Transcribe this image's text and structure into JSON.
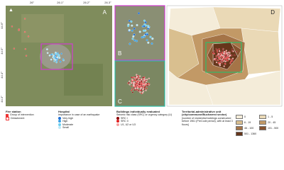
{
  "panels": {
    "a": "A",
    "b": "B",
    "c": "C",
    "d": "D"
  },
  "axes": {
    "top": [
      "26°",
      "26.1°",
      "26.2°",
      "26.3°"
    ],
    "left": [
      "44.6°",
      "44.5°",
      "44.4°",
      "44.3°"
    ]
  },
  "legend": {
    "fire_station": {
      "title": "Fire station",
      "items": [
        "Group of intervention",
        "Detachment"
      ]
    },
    "hospital": {
      "title": "Hospital",
      "subtitle": "Importance in case of an earthquake",
      "items": [
        "Very high",
        "High",
        "Moderate",
        "Small"
      ]
    },
    "buildings": {
      "title": "Buildings individually evaluated",
      "subtitle": "Seismic risk class (SRC) or urgency category (U)",
      "items": [
        "SRC I",
        "SRC II",
        "U1, U2 or U3"
      ]
    },
    "territorial": {
      "title": "Territorial-administrative unit (city/commune/Bucharest sector)",
      "subtitle": "[number of residential buildings constructed before 1961 (PreCode period), with at least 3 floors]",
      "classes": [
        {
          "label": "0",
          "color": "#f4ecd9"
        },
        {
          "label": "1 - 5",
          "color": "#ead9b6"
        },
        {
          "label": "6 - 19",
          "color": "#d9bf8f"
        },
        {
          "label": "20 - 45",
          "color": "#c29966"
        },
        {
          "label": "46 - 100",
          "color": "#a57447"
        },
        {
          "label": "101 - 500",
          "color": "#86522e"
        },
        {
          "label": "501 - 1360",
          "color": "#66361b"
        }
      ]
    }
  }
}
